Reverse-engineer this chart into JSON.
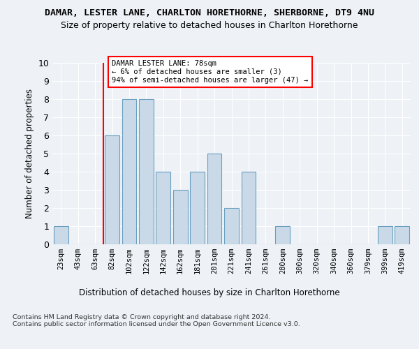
{
  "title_line1": "DAMAR, LESTER LANE, CHARLTON HORETHORNE, SHERBORNE, DT9 4NU",
  "title_line2": "Size of property relative to detached houses in Charlton Horethorne",
  "xlabel": "Distribution of detached houses by size in Charlton Horethorne",
  "ylabel": "Number of detached properties",
  "categories": [
    "23sqm",
    "43sqm",
    "63sqm",
    "82sqm",
    "102sqm",
    "122sqm",
    "142sqm",
    "162sqm",
    "181sqm",
    "201sqm",
    "221sqm",
    "241sqm",
    "261sqm",
    "280sqm",
    "300sqm",
    "320sqm",
    "340sqm",
    "360sqm",
    "379sqm",
    "399sqm",
    "419sqm"
  ],
  "values": [
    1,
    0,
    0,
    6,
    8,
    8,
    4,
    3,
    4,
    5,
    2,
    4,
    0,
    1,
    0,
    0,
    0,
    0,
    0,
    1,
    1
  ],
  "bar_color": "#c9d9e8",
  "bar_edge_color": "#6a9fc0",
  "annotation_text": "DAMAR LESTER LANE: 78sqm\n← 6% of detached houses are smaller (3)\n94% of semi-detached houses are larger (47) →",
  "annotation_box_color": "white",
  "annotation_box_edge_color": "red",
  "red_line_color": "red",
  "ylim": [
    0,
    10
  ],
  "yticks": [
    0,
    1,
    2,
    3,
    4,
    5,
    6,
    7,
    8,
    9,
    10
  ],
  "footnote": "Contains HM Land Registry data © Crown copyright and database right 2024.\nContains public sector information licensed under the Open Government Licence v3.0.",
  "background_color": "#eef2f7",
  "grid_color": "#ffffff",
  "title_fontsize": 9.5,
  "subtitle_fontsize": 9,
  "bar_width": 0.85,
  "red_line_xindex": 3
}
